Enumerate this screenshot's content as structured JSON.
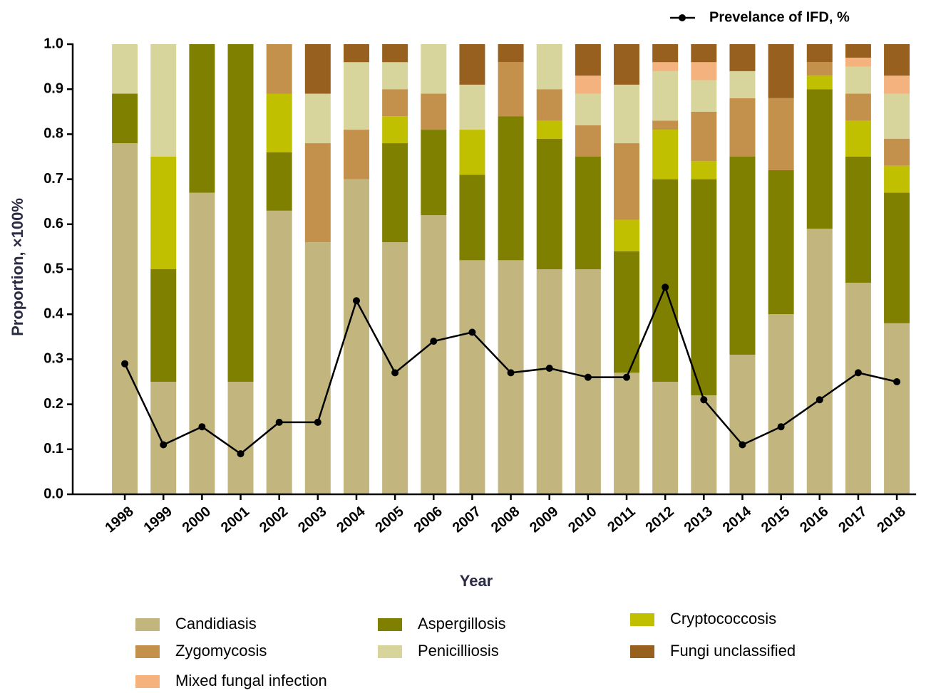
{
  "chart_data": {
    "type": "stacked_bar_line",
    "x_label": "Year",
    "y_label": "Proportion, ×100%",
    "categories": [
      "1998",
      "1999",
      "2000",
      "2001",
      "2002",
      "2003",
      "2004",
      "2005",
      "2006",
      "2007",
      "2008",
      "2009",
      "2010",
      "2011",
      "2012",
      "2013",
      "2014",
      "2015",
      "2016",
      "2017",
      "2018"
    ],
    "ylim": [
      0,
      1
    ],
    "yticks": [
      {
        "value": 0,
        "label": "0.0"
      },
      0.1,
      0.2,
      0.3,
      0.4,
      0.5,
      0.6,
      0.7,
      0.8,
      0.9,
      {
        "value": 1,
        "label": "1.0"
      }
    ],
    "series": [
      {
        "name": "Candidiasis",
        "color": "#c2b67e",
        "values": [
          0.78,
          0.25,
          0.67,
          0.25,
          0.63,
          0.56,
          0.7,
          0.56,
          0.62,
          0.52,
          0.52,
          0.5,
          0.5,
          0.27,
          0.25,
          0.22,
          0.31,
          0.4,
          0.59,
          0.47,
          0.38
        ]
      },
      {
        "name": "Aspergillosis",
        "color": "#808000",
        "values": [
          0.11,
          0.25,
          0.33,
          0.75,
          0.13,
          0,
          0,
          0.22,
          0.19,
          0.19,
          0.32,
          0.29,
          0.25,
          0.27,
          0.45,
          0.48,
          0.44,
          0.32,
          0.31,
          0.28,
          0.29
        ]
      },
      {
        "name": "Cryptococcosis",
        "color": "#c0c000",
        "values": [
          0,
          0.25,
          0,
          0,
          0.13,
          0,
          0,
          0.06,
          0,
          0.1,
          0,
          0.04,
          0,
          0.07,
          0.11,
          0.04,
          0,
          0,
          0.03,
          0.08,
          0.06
        ]
      },
      {
        "name": "Zygomycosis",
        "color": "#c4914c",
        "values": [
          0,
          0,
          0,
          0,
          0.11,
          0.22,
          0.11,
          0.06,
          0.08,
          0,
          0.12,
          0.07,
          0.07,
          0.17,
          0.02,
          0.11,
          0.13,
          0.16,
          0.03,
          0.06,
          0.06
        ]
      },
      {
        "name": "Penicilliosis",
        "color": "#d8d59c",
        "values": [
          0.11,
          0.25,
          0,
          0,
          0,
          0.11,
          0.15,
          0.06,
          0.11,
          0.1,
          0,
          0.1,
          0.07,
          0.13,
          0.11,
          0.07,
          0.06,
          0,
          0,
          0.06,
          0.1
        ]
      },
      {
        "name": "Mixed fungal infection",
        "color": "#f3b27e",
        "values": [
          0,
          0,
          0,
          0,
          0,
          0,
          0,
          0,
          0,
          0,
          0,
          0,
          0.04,
          0,
          0.02,
          0.04,
          0,
          0,
          0,
          0.02,
          0.04
        ]
      },
      {
        "name": "Fungi unclassified",
        "color": "#98601e",
        "values": [
          0,
          0,
          0,
          0,
          0,
          0.11,
          0.04,
          0.04,
          0,
          0.09,
          0.04,
          0,
          0.07,
          0.09,
          0.04,
          0.04,
          0.06,
          0.12,
          0.04,
          0.03,
          0.07
        ]
      }
    ],
    "line": {
      "name": "Prevelance of IFD, %",
      "color": "#000000",
      "values": [
        0.29,
        0.11,
        0.15,
        0.09,
        0.16,
        0.16,
        0.43,
        0.27,
        0.34,
        0.36,
        0.27,
        0.28,
        0.26,
        0.26,
        0.46,
        0.21,
        0.11,
        0.15,
        0.21,
        0.27,
        0.25
      ]
    }
  }
}
